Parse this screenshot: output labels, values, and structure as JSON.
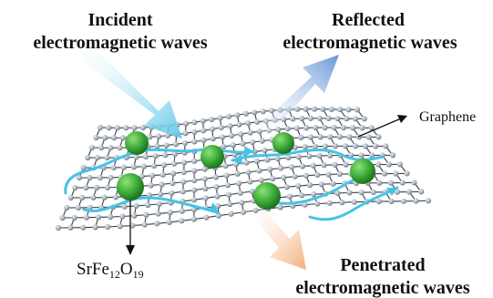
{
  "labels": {
    "incident_line1": "Incident",
    "incident_line2": "electromagnetic waves",
    "reflected_line1": "Reflected",
    "reflected_line2": "electromagnetic waves",
    "penetrated_line1": "Penetrated",
    "penetrated_line2": "electromagnetic waves",
    "graphene": "Graphene",
    "ferrite_base": "SrFe",
    "ferrite_sub1": "12",
    "ferrite_mid": "O",
    "ferrite_sub2": "19"
  },
  "colors": {
    "incident_arrow": "#7fd3ea",
    "reflected_arrow": "#6f9fd8",
    "penetrated_arrow": "#f6b88c",
    "wave_path": "#47c2e6",
    "sphere": "#3fae3a",
    "lattice_atom": "#a9b4bf",
    "lattice_bond": "#3a3f45"
  },
  "icons": {
    "particle": "green-sphere-icon",
    "atom": "carbon-atom-icon"
  }
}
